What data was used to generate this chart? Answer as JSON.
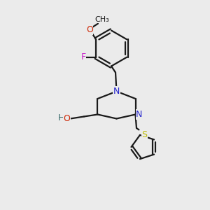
{
  "bg_color": "#ebebeb",
  "bond_color": "#1a1a1a",
  "N_color": "#2222cc",
  "O_color": "#cc2200",
  "F_color": "#cc22cc",
  "S_color": "#bbbb00",
  "H_color": "#336666",
  "line_width": 1.6,
  "figsize": [
    3.0,
    3.0
  ],
  "dpi": 100,
  "xlim": [
    0,
    10
  ],
  "ylim": [
    0,
    10
  ]
}
